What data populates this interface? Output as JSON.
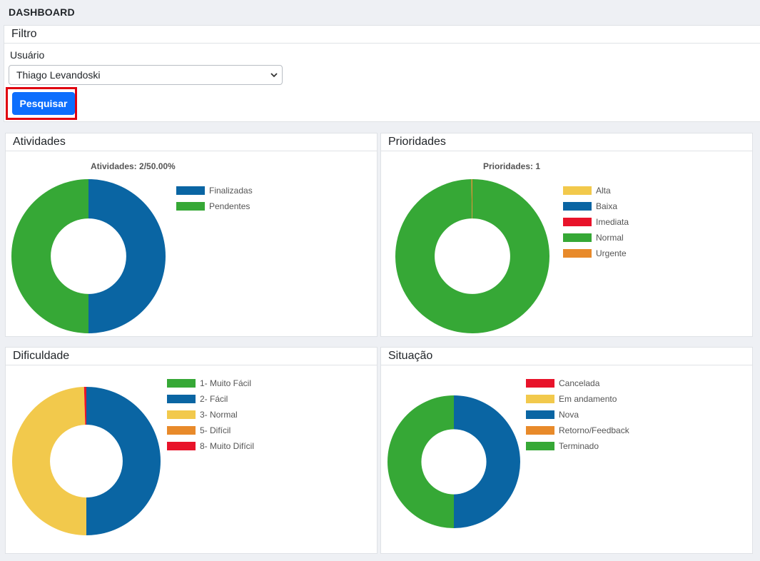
{
  "page": {
    "title": "DASHBOARD"
  },
  "filter": {
    "title": "Filtro",
    "user_label": "Usuário",
    "user_value": "Thiago Levandoski",
    "search_label": "Pesquisar"
  },
  "colors": {
    "blue": "#0a65a3",
    "green": "#36a836",
    "yellow": "#f2c94c",
    "red": "#e8132a",
    "orange": "#e88a2a",
    "button": "#0d6efd",
    "highlight": "#e0000f"
  },
  "cards": {
    "atividades": {
      "title": "Atividades"
    },
    "prioridades": {
      "title": "Prioridades"
    },
    "dificuldade": {
      "title": "Dificuldade"
    },
    "situacao": {
      "title": "Situação"
    }
  },
  "chart_data": [
    {
      "type": "pie",
      "title": "Atividades: 2/50.00%",
      "categories": [
        "Finalizadas",
        "Pendentes"
      ],
      "values": [
        1,
        1
      ],
      "colors": [
        "#0a65a3",
        "#36a836"
      ],
      "legend": "right"
    },
    {
      "type": "pie",
      "title": "Prioridades: 1",
      "categories": [
        "Alta",
        "Baixa",
        "Imediata",
        "Normal",
        "Urgente"
      ],
      "values": [
        0,
        0,
        0,
        1,
        0.002
      ],
      "colors": [
        "#f2c94c",
        "#0a65a3",
        "#e8132a",
        "#36a836",
        "#e88a2a"
      ],
      "legend": "right"
    },
    {
      "type": "pie",
      "title": "",
      "categories": [
        "1- Muito Fácil",
        "2- Fácil",
        "3- Normal",
        "5- Difícil",
        "8- Muito Difícil"
      ],
      "values": [
        0,
        50,
        49.5,
        0,
        0.5
      ],
      "colors": [
        "#36a836",
        "#0a65a3",
        "#f2c94c",
        "#e88a2a",
        "#e8132a"
      ],
      "legend": "right"
    },
    {
      "type": "pie",
      "title": "",
      "categories": [
        "Cancelada",
        "Em andamento",
        "Nova",
        "Retorno/Feedback",
        "Terminado"
      ],
      "values": [
        0,
        0,
        1,
        0,
        1
      ],
      "colors": [
        "#e8132a",
        "#f2c94c",
        "#0a65a3",
        "#e88a2a",
        "#36a836"
      ],
      "legend": "right"
    }
  ]
}
